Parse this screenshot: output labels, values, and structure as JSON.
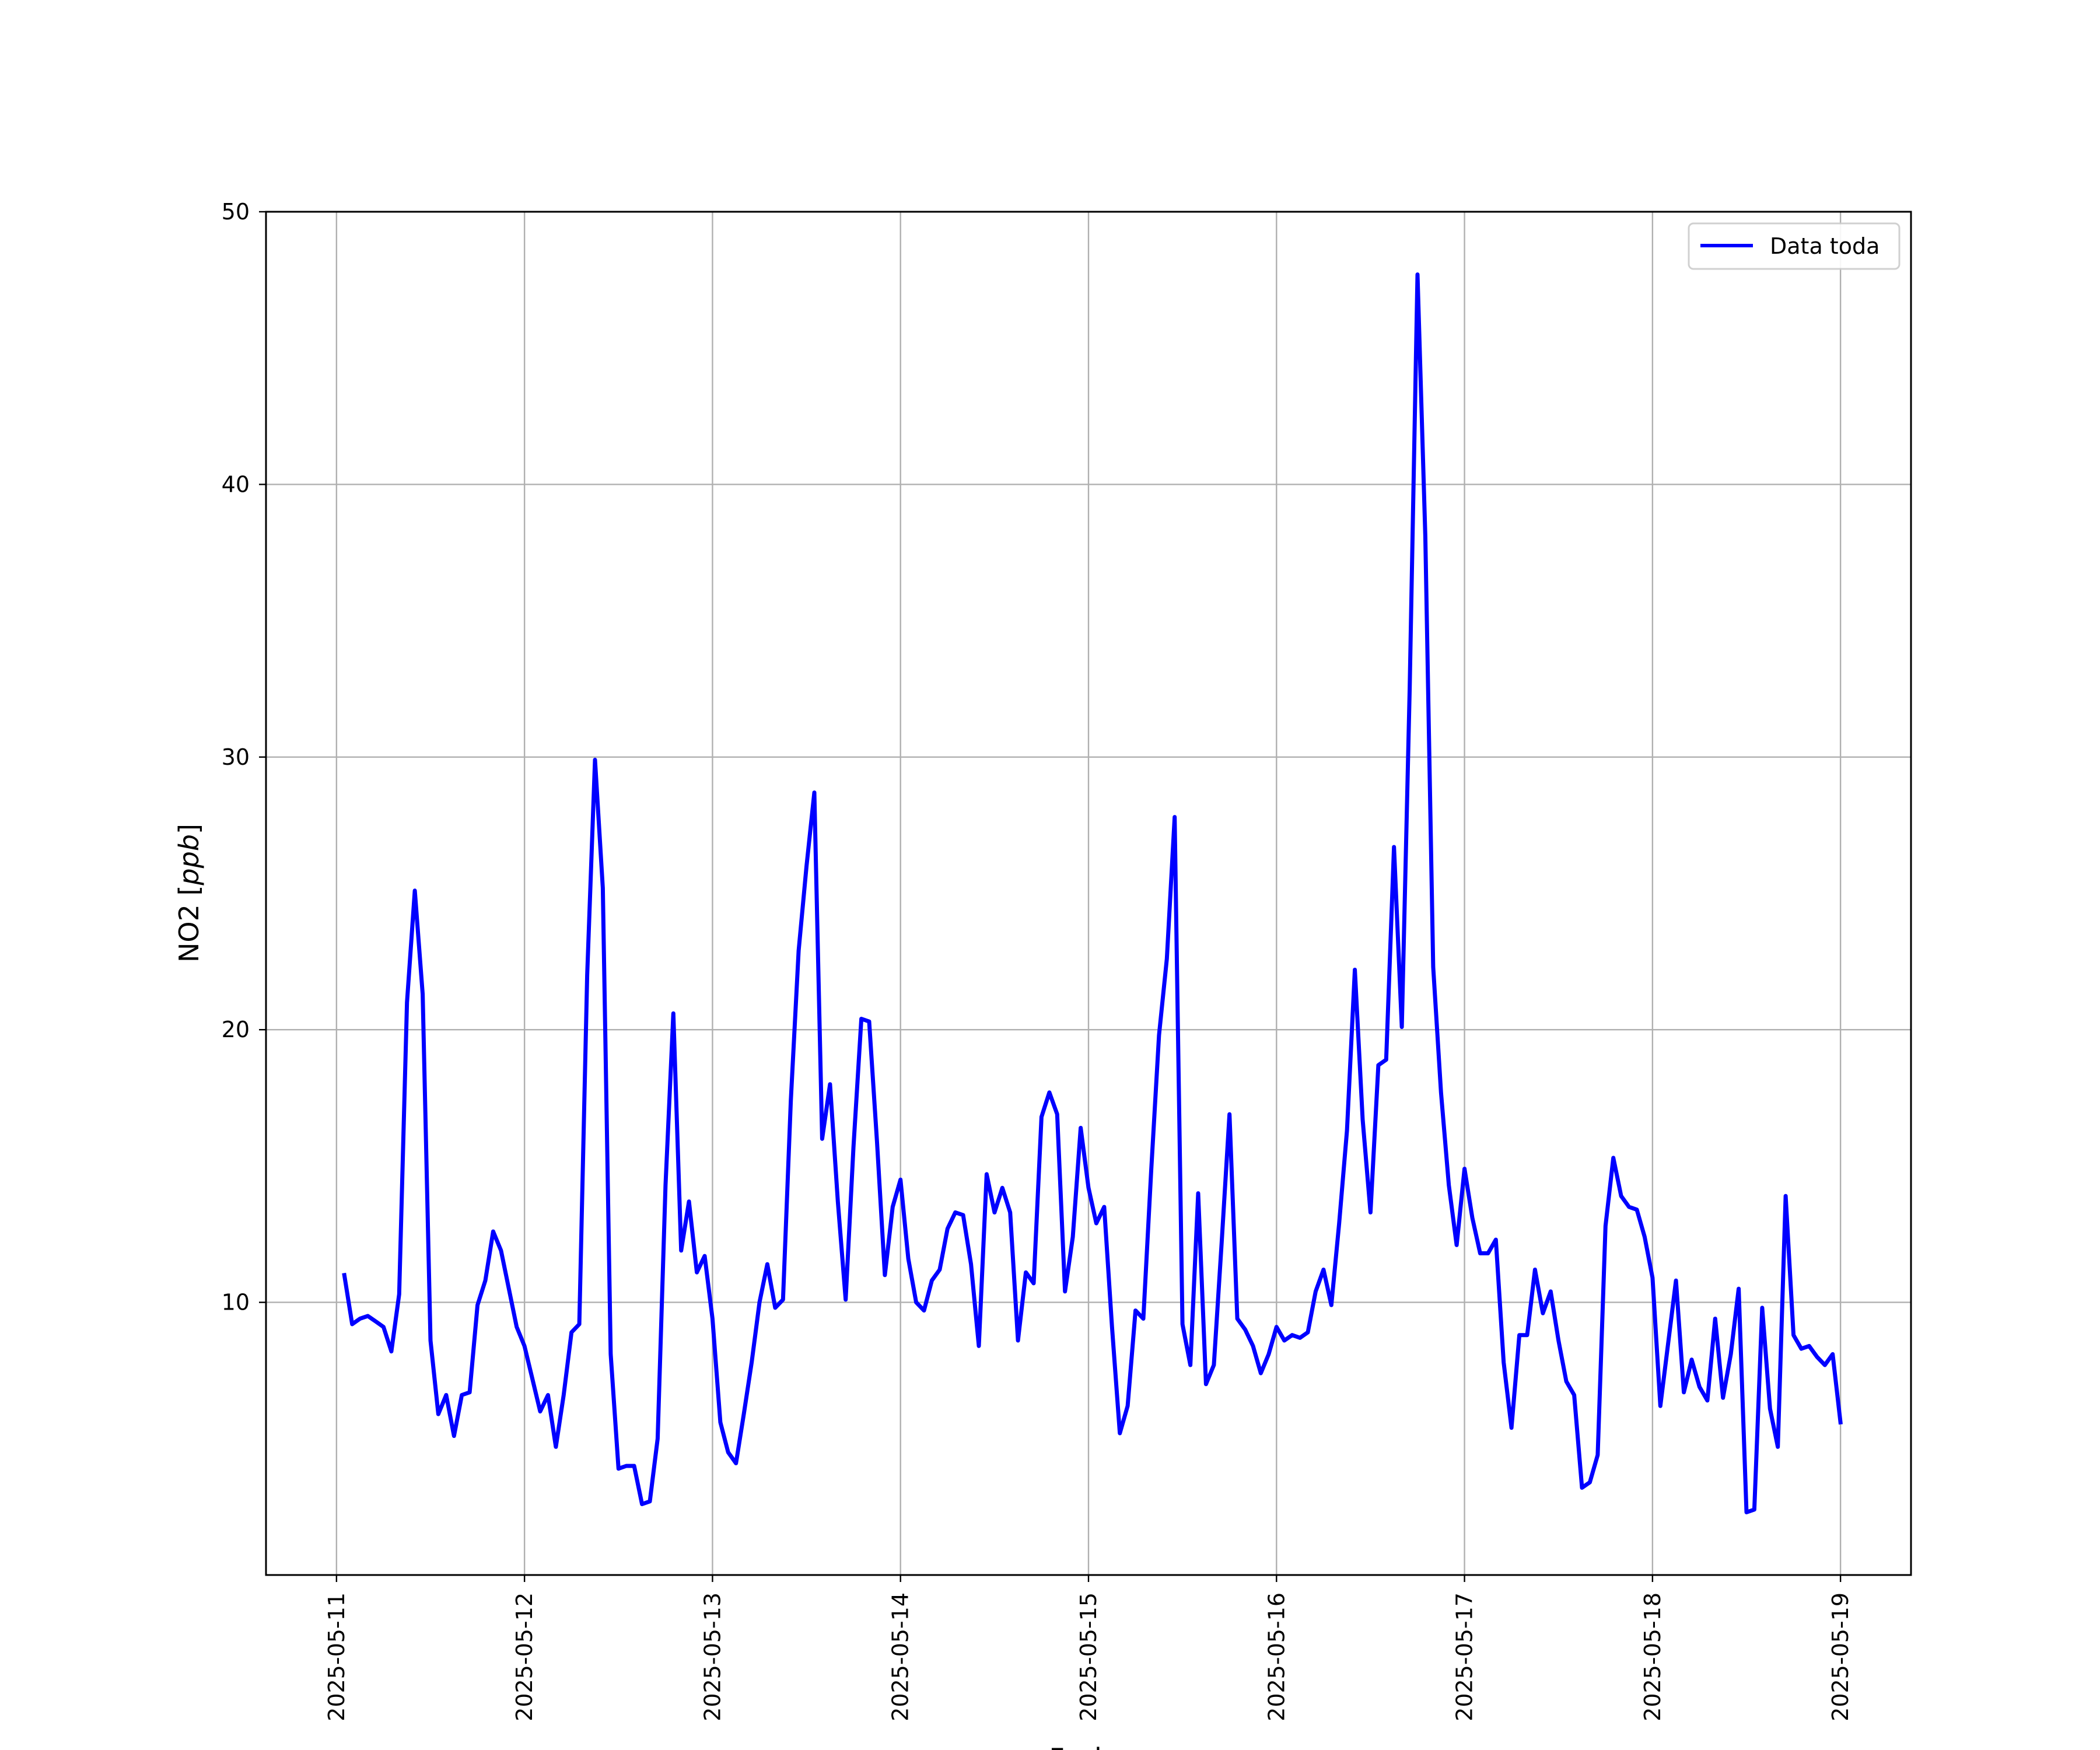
{
  "chart_data": {
    "type": "line",
    "title": "",
    "xlabel": "Fecha",
    "ylabel": "NO2 [ppb]",
    "ylabel_text": "NO2 [",
    "ylabel_unit": "ppb",
    "ylabel_close": "]",
    "xlim": [
      "2025-05-10T15:00",
      "2025-05-19T09:00"
    ],
    "ylim": [
      0,
      50
    ],
    "x_ticks": [
      "2025-05-11",
      "2025-05-12",
      "2025-05-13",
      "2025-05-14",
      "2025-05-15",
      "2025-05-16",
      "2025-05-17",
      "2025-05-18",
      "2025-05-19"
    ],
    "y_ticks": [
      10,
      20,
      30,
      40,
      50
    ],
    "grid": true,
    "legend_position": "top-right",
    "series": [
      {
        "name": "Data toda",
        "color": "#0000ff",
        "x": [
          "2025-05-11T01:00",
          "2025-05-11T02:00",
          "2025-05-11T03:00",
          "2025-05-11T04:00",
          "2025-05-11T05:00",
          "2025-05-11T06:00",
          "2025-05-11T07:00",
          "2025-05-11T08:00",
          "2025-05-11T09:00",
          "2025-05-11T10:00",
          "2025-05-11T11:00",
          "2025-05-11T12:00",
          "2025-05-11T13:00",
          "2025-05-11T14:00",
          "2025-05-11T15:00",
          "2025-05-11T16:00",
          "2025-05-11T17:00",
          "2025-05-11T18:00",
          "2025-05-11T19:00",
          "2025-05-11T20:00",
          "2025-05-11T21:00",
          "2025-05-11T22:00",
          "2025-05-11T23:00",
          "2025-05-12T00:00",
          "2025-05-12T01:00",
          "2025-05-12T02:00",
          "2025-05-12T03:00",
          "2025-05-12T04:00",
          "2025-05-12T05:00",
          "2025-05-12T06:00",
          "2025-05-12T07:00",
          "2025-05-12T08:00",
          "2025-05-12T09:00",
          "2025-05-12T10:00",
          "2025-05-12T11:00",
          "2025-05-12T12:00",
          "2025-05-12T13:00",
          "2025-05-12T14:00",
          "2025-05-12T15:00",
          "2025-05-12T16:00",
          "2025-05-12T17:00",
          "2025-05-12T18:00",
          "2025-05-12T19:00",
          "2025-05-12T20:00",
          "2025-05-12T21:00",
          "2025-05-12T22:00",
          "2025-05-12T23:00",
          "2025-05-13T00:00",
          "2025-05-13T01:00",
          "2025-05-13T02:00",
          "2025-05-13T03:00",
          "2025-05-13T04:00",
          "2025-05-13T05:00",
          "2025-05-13T06:00",
          "2025-05-13T07:00",
          "2025-05-13T08:00",
          "2025-05-13T09:00",
          "2025-05-13T10:00",
          "2025-05-13T11:00",
          "2025-05-13T12:00",
          "2025-05-13T13:00",
          "2025-05-13T14:00",
          "2025-05-13T15:00",
          "2025-05-13T16:00",
          "2025-05-13T17:00",
          "2025-05-13T18:00",
          "2025-05-13T19:00",
          "2025-05-13T20:00",
          "2025-05-13T21:00",
          "2025-05-13T22:00",
          "2025-05-13T23:00",
          "2025-05-14T00:00",
          "2025-05-14T01:00",
          "2025-05-14T02:00",
          "2025-05-14T03:00",
          "2025-05-14T04:00",
          "2025-05-14T05:00",
          "2025-05-14T06:00",
          "2025-05-14T07:00",
          "2025-05-14T08:00",
          "2025-05-14T09:00",
          "2025-05-14T10:00",
          "2025-05-14T11:00",
          "2025-05-14T12:00",
          "2025-05-14T13:00",
          "2025-05-14T14:00",
          "2025-05-14T15:00",
          "2025-05-14T16:00",
          "2025-05-14T17:00",
          "2025-05-14T18:00",
          "2025-05-14T19:00",
          "2025-05-14T20:00",
          "2025-05-14T21:00",
          "2025-05-14T22:00",
          "2025-05-14T23:00",
          "2025-05-15T00:00",
          "2025-05-15T01:00",
          "2025-05-15T02:00",
          "2025-05-15T03:00",
          "2025-05-15T04:00",
          "2025-05-15T05:00",
          "2025-05-15T06:00",
          "2025-05-15T07:00",
          "2025-05-15T08:00",
          "2025-05-15T09:00",
          "2025-05-15T10:00",
          "2025-05-15T11:00",
          "2025-05-15T12:00",
          "2025-05-15T13:00",
          "2025-05-15T14:00",
          "2025-05-15T15:00",
          "2025-05-15T16:00",
          "2025-05-15T17:00",
          "2025-05-15T18:00",
          "2025-05-15T19:00",
          "2025-05-15T20:00",
          "2025-05-15T21:00",
          "2025-05-15T22:00",
          "2025-05-15T23:00",
          "2025-05-16T00:00",
          "2025-05-16T01:00",
          "2025-05-16T02:00",
          "2025-05-16T03:00",
          "2025-05-16T04:00",
          "2025-05-16T05:00",
          "2025-05-16T06:00",
          "2025-05-16T07:00",
          "2025-05-16T08:00",
          "2025-05-16T09:00",
          "2025-05-16T10:00",
          "2025-05-16T11:00",
          "2025-05-16T12:00",
          "2025-05-16T13:00",
          "2025-05-16T14:00",
          "2025-05-16T15:00",
          "2025-05-16T16:00",
          "2025-05-16T17:00",
          "2025-05-16T18:00",
          "2025-05-16T19:00",
          "2025-05-16T20:00",
          "2025-05-16T21:00",
          "2025-05-16T22:00",
          "2025-05-16T23:00",
          "2025-05-17T00:00",
          "2025-05-17T01:00",
          "2025-05-17T02:00",
          "2025-05-17T03:00",
          "2025-05-17T04:00",
          "2025-05-17T05:00",
          "2025-05-17T06:00",
          "2025-05-17T07:00",
          "2025-05-17T08:00",
          "2025-05-17T09:00",
          "2025-05-17T10:00",
          "2025-05-17T11:00",
          "2025-05-17T12:00",
          "2025-05-17T13:00",
          "2025-05-17T14:00",
          "2025-05-17T15:00",
          "2025-05-17T16:00",
          "2025-05-17T17:00",
          "2025-05-17T18:00",
          "2025-05-17T19:00",
          "2025-05-17T20:00",
          "2025-05-17T21:00",
          "2025-05-17T22:00",
          "2025-05-17T23:00",
          "2025-05-18T00:00",
          "2025-05-18T01:00",
          "2025-05-18T02:00",
          "2025-05-18T03:00",
          "2025-05-18T04:00",
          "2025-05-18T05:00",
          "2025-05-18T06:00",
          "2025-05-18T07:00",
          "2025-05-18T08:00",
          "2025-05-18T09:00",
          "2025-05-18T10:00",
          "2025-05-18T11:00",
          "2025-05-18T12:00",
          "2025-05-18T13:00",
          "2025-05-18T14:00",
          "2025-05-18T15:00",
          "2025-05-18T16:00",
          "2025-05-18T17:00",
          "2025-05-18T18:00",
          "2025-05-18T19:00",
          "2025-05-18T20:00",
          "2025-05-18T21:00",
          "2025-05-18T22:00",
          "2025-05-18T23:00",
          "2025-05-19T00:00"
        ],
        "y": [
          11.0,
          9.2,
          9.4,
          9.5,
          9.3,
          9.1,
          8.2,
          10.3,
          21.0,
          25.1,
          21.3,
          8.6,
          5.9,
          6.6,
          5.1,
          6.6,
          6.7,
          9.9,
          10.8,
          12.6,
          11.9,
          10.5,
          9.1,
          8.4,
          7.2,
          6.0,
          6.6,
          4.7,
          6.6,
          8.9,
          9.2,
          22.0,
          29.9,
          25.2,
          8.1,
          3.9,
          4.0,
          4.0,
          2.6,
          2.7,
          5.0,
          14.3,
          20.6,
          11.9,
          13.7,
          11.1,
          11.7,
          9.4,
          5.6,
          4.5,
          4.1,
          5.9,
          7.8,
          10.0,
          11.4,
          9.8,
          10.1,
          17.4,
          22.9,
          26.0,
          28.7,
          16.0,
          18.0,
          13.7,
          10.1,
          15.7,
          20.4,
          20.3,
          15.9,
          11.0,
          13.5,
          14.5,
          11.6,
          10.0,
          9.7,
          10.8,
          11.2,
          12.7,
          13.3,
          13.2,
          11.4,
          8.4,
          14.7,
          13.3,
          14.2,
          13.3,
          8.6,
          11.1,
          10.7,
          16.8,
          17.7,
          16.9,
          10.4,
          12.4,
          16.4,
          14.2,
          12.9,
          13.5,
          9.1,
          5.2,
          6.2,
          9.7,
          9.4,
          14.8,
          19.8,
          22.6,
          27.8,
          9.2,
          7.7,
          14.0,
          7.0,
          7.7,
          12.2,
          16.9,
          9.4,
          9.0,
          8.4,
          7.4,
          8.1,
          9.1,
          8.6,
          8.8,
          8.7,
          8.9,
          10.4,
          11.2,
          9.9,
          12.9,
          16.3,
          22.2,
          16.7,
          13.3,
          18.7,
          18.9,
          26.7,
          20.1,
          32.5,
          47.7,
          38.1,
          22.3,
          17.7,
          14.3,
          12.1,
          14.9,
          13.1,
          11.8,
          11.8,
          12.3,
          7.8,
          5.4,
          8.8,
          8.8,
          11.2,
          9.6,
          10.4,
          8.6,
          7.1,
          6.6,
          3.2,
          3.4,
          4.4,
          12.8,
          15.3,
          13.9,
          13.5,
          13.4,
          12.4,
          10.9,
          6.2,
          8.5,
          10.8,
          6.7,
          7.9,
          6.9,
          6.4,
          9.4,
          6.5,
          8.1,
          10.5,
          2.3,
          2.4,
          9.8,
          6.1,
          4.7,
          13.9,
          8.8,
          8.3,
          8.4,
          8.0,
          7.7,
          8.1,
          5.6
        ]
      }
    ]
  }
}
